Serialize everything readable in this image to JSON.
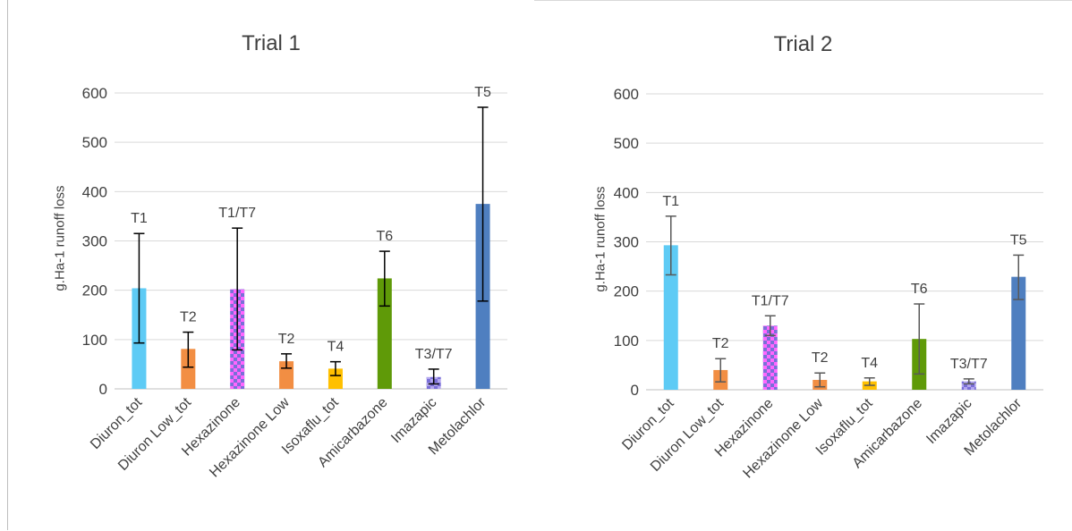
{
  "chart_data": [
    {
      "type": "bar",
      "title": "Trial 1",
      "ylabel": "g.Ha-1 runoff loss",
      "xlabel": "",
      "ylim": [
        0,
        600
      ],
      "yticks": [
        0,
        100,
        200,
        300,
        400,
        500,
        600
      ],
      "grid": true,
      "categories": [
        "Diuron_tot",
        "Diuron Low_tot",
        "Hexazinone",
        "Hexazinone Low",
        "Isoxaflu_tot",
        "Amicarbazone",
        "Imazapic",
        "Metolachlor"
      ],
      "values": [
        204,
        81,
        202,
        56,
        41,
        224,
        24,
        375
      ],
      "error_low": [
        93,
        44,
        79,
        42,
        27,
        168,
        10,
        178
      ],
      "error_high": [
        315,
        115,
        326,
        71,
        55,
        279,
        40,
        571
      ],
      "bar_labels": [
        "T1",
        "T2",
        "T1/T7",
        "T2",
        "T4",
        "T6",
        "T3/T7",
        "T5"
      ],
      "colors": [
        "#5ecbf5",
        "#f28e43",
        "#ff66ff",
        "#f28e43",
        "#ffc000",
        "#5f9a08",
        "#b4a7f0",
        "#4f7fc0"
      ],
      "patterns": [
        "solid",
        "solid",
        "checker",
        "solid",
        "solid",
        "solid",
        "checker",
        "solid"
      ],
      "error_color": "#000000"
    },
    {
      "type": "bar",
      "title": "Trial 2",
      "ylabel": "g.Ha-1 runoff loss",
      "xlabel": "",
      "ylim": [
        0,
        600
      ],
      "yticks": [
        0,
        100,
        200,
        300,
        400,
        500,
        600
      ],
      "grid": true,
      "categories": [
        "Diuron_tot",
        "Diuron Low_tot",
        "Hexazinone",
        "Hexazinone Low",
        "Isoxaflu_tot",
        "Amicarbazone",
        "Imazapic",
        "Metolachlor"
      ],
      "values": [
        293,
        40,
        130,
        20,
        17,
        103,
        17,
        229
      ],
      "error_low": [
        233,
        16,
        110,
        6,
        9,
        32,
        12,
        183
      ],
      "error_high": [
        352,
        63,
        150,
        34,
        24,
        174,
        22,
        273
      ],
      "bar_labels": [
        "T1",
        "T2",
        "T1/T7",
        "T2",
        "T4",
        "T6",
        "T3/T7",
        "T5"
      ],
      "colors": [
        "#5ecbf5",
        "#f28e43",
        "#ff66ff",
        "#f28e43",
        "#ffc000",
        "#5f9a08",
        "#b4a7f0",
        "#4f7fc0"
      ],
      "patterns": [
        "solid",
        "solid",
        "checker",
        "solid",
        "solid",
        "solid",
        "checker",
        "solid"
      ],
      "error_color": "#595959"
    }
  ]
}
